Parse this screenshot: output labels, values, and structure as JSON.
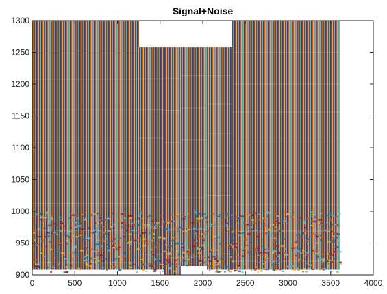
{
  "chart_data": {
    "type": "line",
    "title": "Signal+Noise",
    "xlabel": "",
    "ylabel": "",
    "xlim": [
      0,
      4000
    ],
    "ylim": [
      900,
      1300
    ],
    "x_ticks": [
      0,
      500,
      1000,
      1500,
      2000,
      2500,
      3000,
      3500,
      4000
    ],
    "y_ticks": [
      900,
      950,
      1000,
      1050,
      1100,
      1150,
      1200,
      1250,
      1300
    ],
    "grid": false,
    "legend": "none",
    "description_of_marks": "dense overlapping multi-colored vertical traces",
    "x_extent": [
      0,
      3600
    ],
    "filled_regions": [
      {
        "x_range": [
          0,
          1250
        ],
        "y_range": [
          908,
          1300
        ]
      },
      {
        "x_range": [
          1250,
          1550
        ],
        "y_range": [
          908,
          1258
        ]
      },
      {
        "x_range": [
          1550,
          1740
        ],
        "y_range": [
          900,
          1258
        ]
      },
      {
        "x_range": [
          1740,
          2050
        ],
        "y_range": [
          914,
          1258
        ]
      },
      {
        "x_range": [
          2050,
          2350
        ],
        "y_range": [
          908,
          1258
        ]
      },
      {
        "x_range": [
          2350,
          3600
        ],
        "y_range": [
          908,
          1300
        ]
      }
    ],
    "series_colors": [
      "#0072bd",
      "#d95319",
      "#edb120",
      "#7e2f8e",
      "#77ac30",
      "#4dbeee",
      "#a2142f"
    ]
  }
}
